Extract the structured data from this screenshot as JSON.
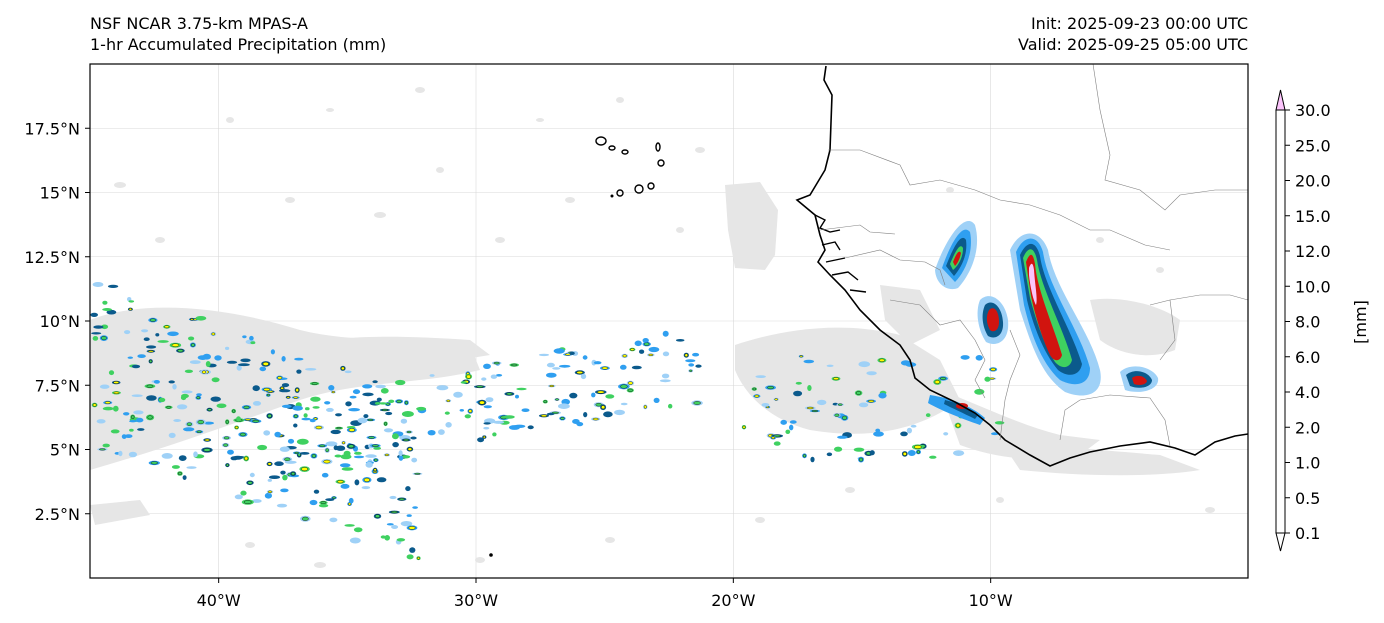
{
  "header": {
    "model": "NSF NCAR 3.75-km MPAS-A",
    "field": "1-hr Accumulated Precipitation (mm)",
    "init": "Init: 2025-09-23 00:00 UTC",
    "valid": "Valid: 2025-09-25 05:00 UTC"
  },
  "map": {
    "lon_range": [
      -45,
      0
    ],
    "lat_range": [
      0,
      20
    ],
    "lon_ticks": [
      {
        "value": -40,
        "label": "40°W"
      },
      {
        "value": -30,
        "label": "30°W"
      },
      {
        "value": -20,
        "label": "20°W"
      },
      {
        "value": -10,
        "label": "10°W"
      }
    ],
    "lat_ticks": [
      {
        "value": 2.5,
        "label": "2.5°N"
      },
      {
        "value": 5,
        "label": "5°N"
      },
      {
        "value": 7.5,
        "label": "7.5°N"
      },
      {
        "value": 10,
        "label": "10°N"
      },
      {
        "value": 12.5,
        "label": "12.5°N"
      },
      {
        "value": 15,
        "label": "15°N"
      },
      {
        "value": 17.5,
        "label": "17.5°N"
      }
    ],
    "gridlines": true
  },
  "colorbar": {
    "unit_label": "[mm]",
    "levels": [
      "0.1",
      "0.5",
      "1.0",
      "2.0",
      "4.0",
      "6.0",
      "8.0",
      "10.0",
      "12.0",
      "15.0",
      "20.0",
      "25.0",
      "30.0"
    ],
    "colors": [
      "#e6e6e6",
      "#9fd1f7",
      "#2f9ff0",
      "#0b5a8c",
      "#3fd160",
      "#ffff00",
      "#f5b731",
      "#ea8a26",
      "#d1140f",
      "#9a0d0d",
      "#b630b8",
      "#fbc4fb"
    ],
    "extend": "both"
  }
}
